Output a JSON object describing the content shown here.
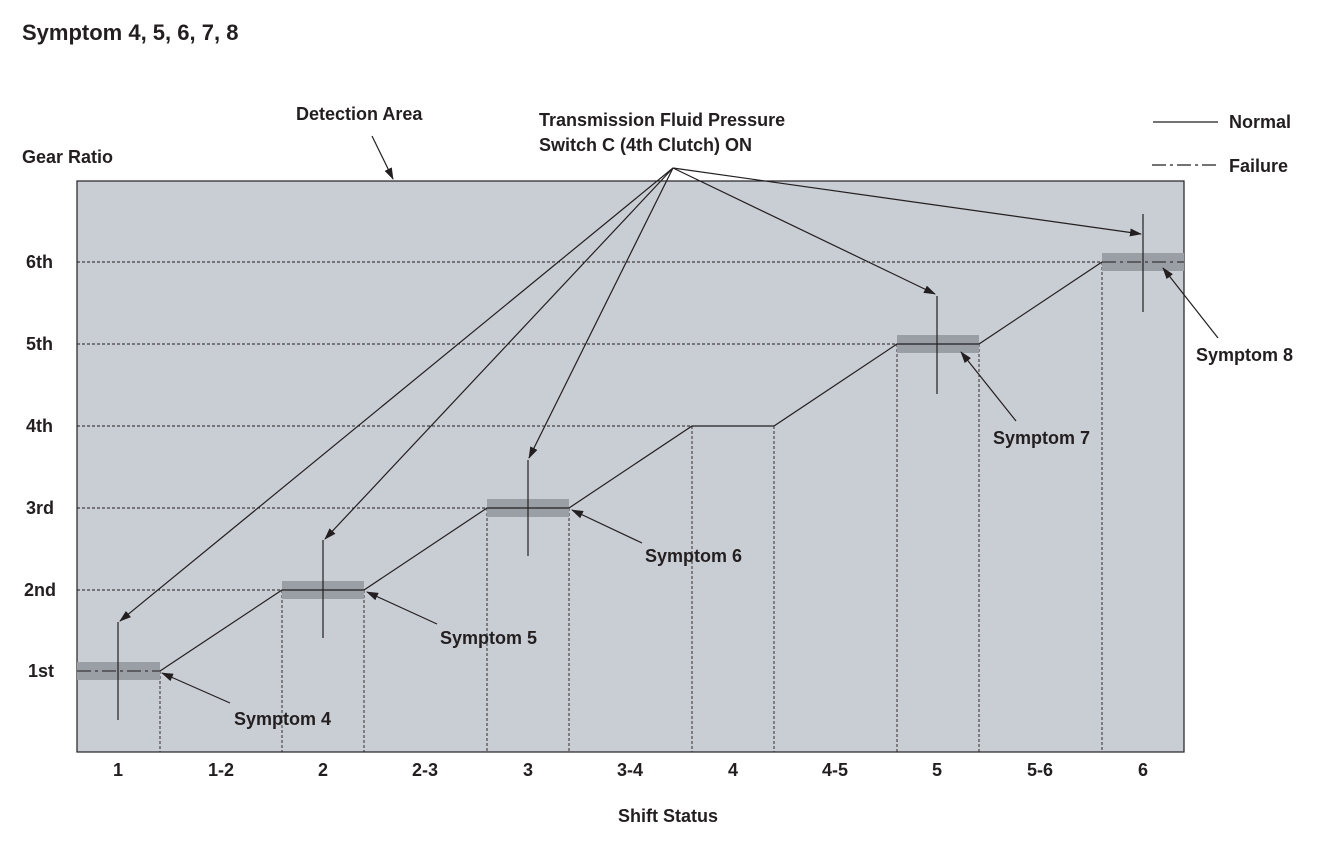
{
  "title": "Symptom 4, 5, 6, 7, 8",
  "y_axis_label": "Gear Ratio",
  "x_axis_label": "Shift Status",
  "detection_area_label": "Detection Area",
  "switch_label": [
    "Transmission Fluid Pressure",
    "Switch C (4th Clutch) ON"
  ],
  "legend": {
    "normal": "Normal",
    "failure": "Failure"
  },
  "gears": [
    "1st",
    "2nd",
    "3rd",
    "4th",
    "5th",
    "6th"
  ],
  "shift_status": [
    "1",
    "1-2",
    "2",
    "2-3",
    "3",
    "3-4",
    "4",
    "4-5",
    "5",
    "5-6",
    "6"
  ],
  "symptoms": [
    "Symptom 4",
    "Symptom 5",
    "Symptom 6",
    "Symptom 7",
    "Symptom 8"
  ],
  "colors": {
    "plot_bg": "#c9cdd4",
    "band": "#9a9ea5",
    "ink": "#231f20"
  }
}
